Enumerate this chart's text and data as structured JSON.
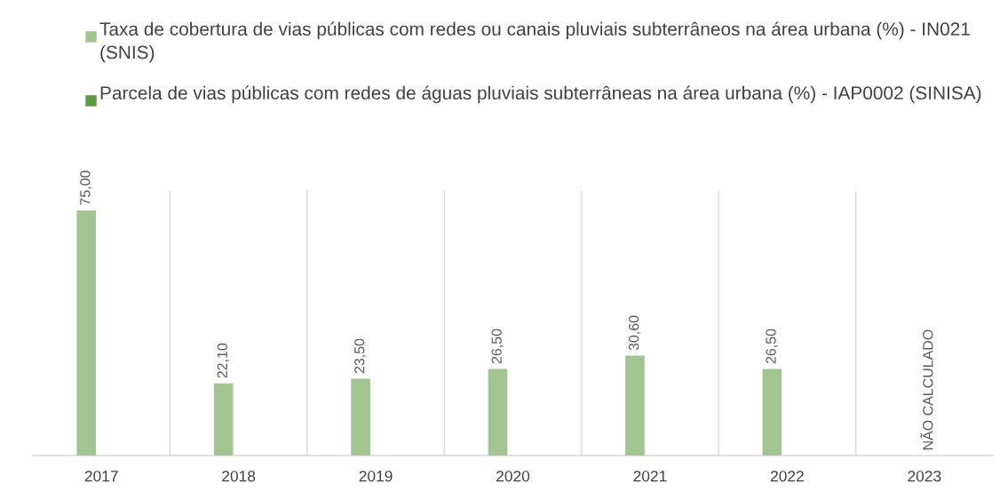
{
  "chart_data": {
    "type": "bar",
    "categories": [
      "2017",
      "2018",
      "2019",
      "2020",
      "2021",
      "2022",
      "2023"
    ],
    "series": [
      {
        "name": "Taxa de cobertura de vias públicas com redes ou canais pluviais subterrâneos na área urbana (%) - IN021 (SNIS)",
        "color": "#a1c490",
        "values": [
          75.0,
          22.1,
          23.5,
          26.5,
          30.6,
          26.5,
          null
        ],
        "value_labels": [
          "75,00",
          "22,10",
          "23,50",
          "26,50",
          "30,60",
          "26,50",
          null
        ]
      },
      {
        "name": "Parcela de vias públicas com redes de águas pluviais subterrâneas na área urbana (%) - IAP0002 (SINISA)",
        "color": "#5b9a45",
        "values": [
          null,
          null,
          null,
          null,
          null,
          null,
          null
        ],
        "value_labels": [
          null,
          null,
          null,
          null,
          null,
          null,
          "NÃO CALCULADO"
        ]
      }
    ],
    "grid": "x",
    "legend": "top"
  }
}
